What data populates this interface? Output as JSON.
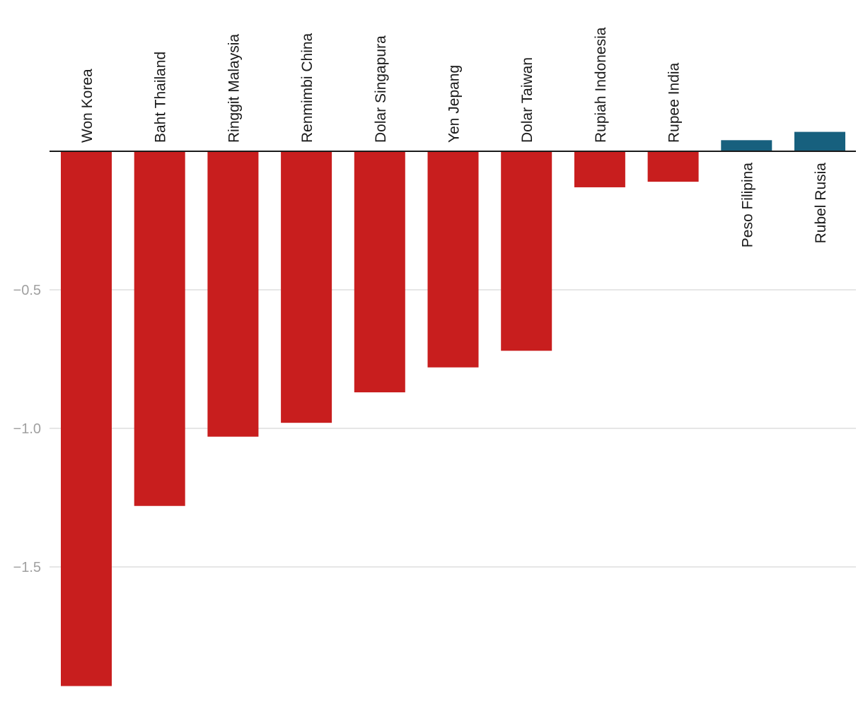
{
  "chart_data": {
    "type": "bar",
    "title": "",
    "xlabel": "",
    "ylabel": "",
    "categories": [
      "Won Korea",
      "Baht Thailand",
      "Ringgit Malaysia",
      "Renmimbi China",
      "Dolar Singapura",
      "Yen Jepang",
      "Dolar Taiwan",
      "Rupiah Indonesia",
      "Rupee India",
      "Peso Filipina",
      "Rubel Rusia"
    ],
    "values": [
      -1.93,
      -1.28,
      -1.03,
      -0.98,
      -0.87,
      -0.78,
      -0.72,
      -0.13,
      -0.11,
      0.04,
      0.07
    ],
    "ylim": [
      -1.93,
      0.07
    ],
    "yticks": [
      -0.5,
      -1.0,
      -1.5
    ],
    "ytick_labels": [
      "−0.5",
      "−1.0",
      "−1.5"
    ],
    "grid": true,
    "colors": {
      "negative": "#c81e1e",
      "positive": "#17607e",
      "zero_line": "#1a1a1a",
      "grid": "#dddddd",
      "tick_text": "#a0a0a0",
      "label_text": "#1a1a1a"
    }
  }
}
